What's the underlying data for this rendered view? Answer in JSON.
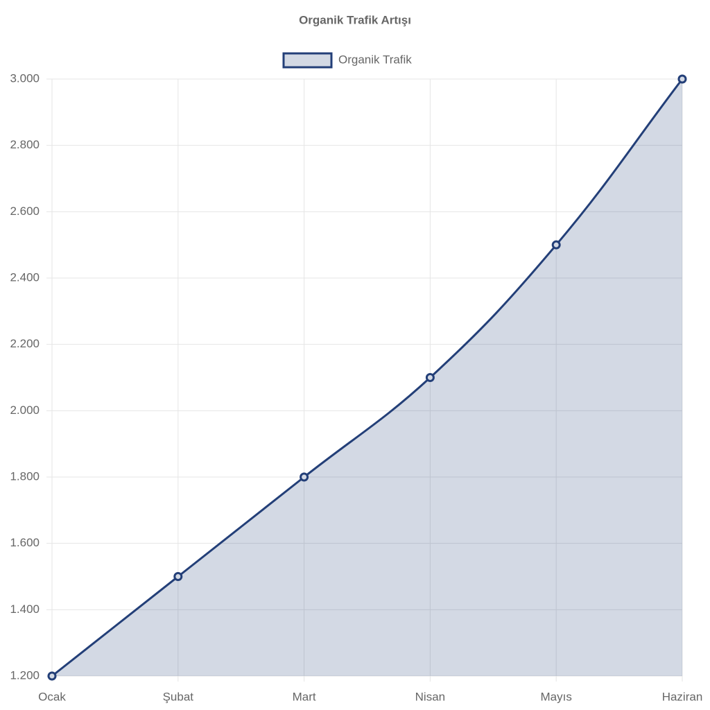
{
  "chart_data": {
    "type": "line",
    "title": "Organik Trafik Artışı",
    "categories": [
      "Ocak",
      "Şubat",
      "Mart",
      "Nisan",
      "Mayıs",
      "Haziran"
    ],
    "series": [
      {
        "name": "Organik Trafik",
        "color": "#233f78",
        "values": [
          1200,
          1500,
          1800,
          2100,
          2500,
          3000
        ]
      }
    ],
    "fill": true,
    "grid": true,
    "legend": "top",
    "ylim": [
      1200,
      3000
    ],
    "yticks": [
      {
        "value": 1200,
        "label": "1.200"
      },
      {
        "value": 1400,
        "label": "1.400"
      },
      {
        "value": 1600,
        "label": "1.600"
      },
      {
        "value": 1800,
        "label": "1.800"
      },
      {
        "value": 2000,
        "label": "2.000"
      },
      {
        "value": 2200,
        "label": "2.200"
      },
      {
        "value": 2400,
        "label": "2.400"
      },
      {
        "value": 2600,
        "label": "2.600"
      },
      {
        "value": 2800,
        "label": "2.800"
      },
      {
        "value": 3000,
        "label": "3.000"
      }
    ]
  }
}
